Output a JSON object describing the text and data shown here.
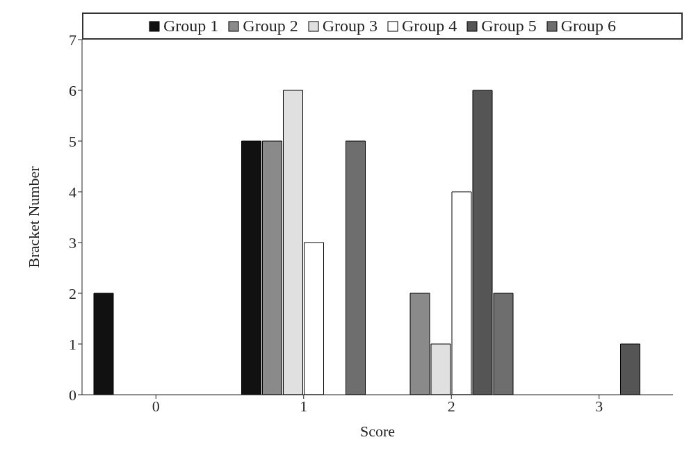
{
  "chart_data": {
    "type": "bar",
    "xlabel": "Score",
    "ylabel": "Bracket Number",
    "categories": [
      "0",
      "1",
      "2",
      "3"
    ],
    "series": [
      {
        "name": "Group 1",
        "color": "#111111",
        "values": [
          2,
          5,
          0,
          0
        ]
      },
      {
        "name": "Group 2",
        "color": "#8a8a8a",
        "values": [
          0,
          5,
          2,
          0
        ]
      },
      {
        "name": "Group 3",
        "color": "#e0e0e0",
        "values": [
          0,
          6,
          1,
          0
        ]
      },
      {
        "name": "Group 4",
        "color": "#ffffff",
        "values": [
          0,
          3,
          4,
          0
        ]
      },
      {
        "name": "Group 5",
        "color": "#555555",
        "values": [
          0,
          0,
          6,
          1
        ]
      },
      {
        "name": "Group 6",
        "color": "#6e6e6e",
        "values": [
          0,
          5,
          2,
          0
        ]
      }
    ],
    "ylim": [
      0,
      7
    ],
    "yticks": [
      0,
      1,
      2,
      3,
      4,
      5,
      6,
      7
    ],
    "grid": false,
    "legend": "top"
  }
}
